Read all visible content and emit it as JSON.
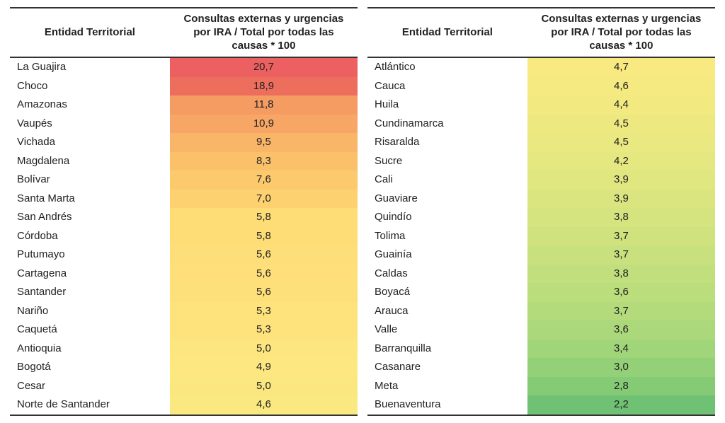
{
  "columns": {
    "entity_header": "Entidad Territorial",
    "value_header": "Consultas externas y urgencias por IRA / Total por todas las causas * 100"
  },
  "styling": {
    "font_family": "Arial",
    "base_font_size_pt": 11,
    "header_border_color": "#333333",
    "background_color": "#ffffff",
    "heatmap_note": "red-yellow-green scale, high=red low=green",
    "column_widths_pct": {
      "entity": 46,
      "value": 54
    }
  },
  "left": [
    {
      "entity": "La Guajira",
      "value": "20,7",
      "color": "#ec6061"
    },
    {
      "entity": "Choco",
      "value": "18,9",
      "color": "#ee6e5e"
    },
    {
      "entity": "Amazonas",
      "value": "11,8",
      "color": "#f59c63"
    },
    {
      "entity": "Vaupés",
      "value": "10,9",
      "color": "#f7a665"
    },
    {
      "entity": "Vichada",
      "value": "9,5",
      "color": "#f9b568"
    },
    {
      "entity": "Magdalena",
      "value": "8,3",
      "color": "#fbc16a"
    },
    {
      "entity": "Bolívar",
      "value": "7,6",
      "color": "#fcca6d"
    },
    {
      "entity": "Santa Marta",
      "value": "7,0",
      "color": "#fdd170"
    },
    {
      "entity": "San Andrés",
      "value": "5,8",
      "color": "#fedd76"
    },
    {
      "entity": "Córdoba",
      "value": "5,8",
      "color": "#fedd76"
    },
    {
      "entity": "Putumayo",
      "value": "5,6",
      "color": "#fede78"
    },
    {
      "entity": "Cartagena",
      "value": "5,6",
      "color": "#fedf79"
    },
    {
      "entity": "Santander",
      "value": "5,6",
      "color": "#fee07a"
    },
    {
      "entity": "Nariño",
      "value": "5,3",
      "color": "#fee27c"
    },
    {
      "entity": "Caquetá",
      "value": "5,3",
      "color": "#fee37d"
    },
    {
      "entity": "Antioquia",
      "value": "5,0",
      "color": "#fde67f"
    },
    {
      "entity": "Bogotá",
      "value": "4,9",
      "color": "#fce780"
    },
    {
      "entity": "Cesar",
      "value": "5,0",
      "color": "#fbe780"
    },
    {
      "entity": "Norte de Santander",
      "value": "4,6",
      "color": "#fae981"
    }
  ],
  "right": [
    {
      "entity": "Atlántico",
      "value": "4,7",
      "color": "#f8e981"
    },
    {
      "entity": "Cauca",
      "value": "4,6",
      "color": "#f5e981"
    },
    {
      "entity": "Huila",
      "value": "4,4",
      "color": "#f2e981"
    },
    {
      "entity": "Cundinamarca",
      "value": "4,5",
      "color": "#eee881"
    },
    {
      "entity": "Risaralda",
      "value": "4,5",
      "color": "#eae881"
    },
    {
      "entity": "Sucre",
      "value": "4,2",
      "color": "#e5e780"
    },
    {
      "entity": "Cali",
      "value": "3,9",
      "color": "#e0e680"
    },
    {
      "entity": "Guaviare",
      "value": "3,9",
      "color": "#dbe57f"
    },
    {
      "entity": "Quindío",
      "value": "3,8",
      "color": "#d5e47f"
    },
    {
      "entity": "Tolima",
      "value": "3,7",
      "color": "#cfe27e"
    },
    {
      "entity": "Guainía",
      "value": "3,7",
      "color": "#c8e07d"
    },
    {
      "entity": "Caldas",
      "value": "3,8",
      "color": "#c2df7d"
    },
    {
      "entity": "Boyacá",
      "value": "3,6",
      "color": "#bbdd7c"
    },
    {
      "entity": "Arauca",
      "value": "3,7",
      "color": "#b3db7b"
    },
    {
      "entity": "Valle",
      "value": "3,6",
      "color": "#abd87a"
    },
    {
      "entity": "Barranquilla",
      "value": "3,4",
      "color": "#a1d579"
    },
    {
      "entity": "Casanare",
      "value": "3,0",
      "color": "#94d077"
    },
    {
      "entity": "Meta",
      "value": "2,8",
      "color": "#85cb75"
    },
    {
      "entity": "Buenaventura",
      "value": "2,2",
      "color": "#6fc273"
    }
  ]
}
